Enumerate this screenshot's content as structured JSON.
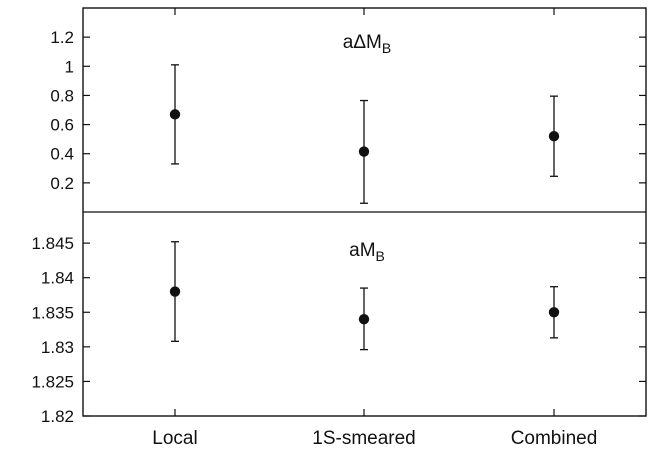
{
  "chart_data": [
    {
      "type": "scatter",
      "title": "aΔM",
      "title_subscript": "B",
      "categories": [
        "Local",
        "1S-smeared",
        "Combined"
      ],
      "values": [
        0.67,
        0.415,
        0.52
      ],
      "error_low": [
        0.33,
        0.06,
        0.245
      ],
      "error_high": [
        1.01,
        0.765,
        0.795
      ],
      "ylim": [
        0.0,
        1.4
      ],
      "yticks": [
        0.2,
        0.4,
        0.6,
        0.8,
        1.0,
        1.2
      ],
      "ytick_labels": [
        "0.2",
        "0.4",
        "0.6",
        "0.8",
        "1",
        "1.2"
      ],
      "grid": false,
      "error_bars": true
    },
    {
      "type": "scatter",
      "title": "aM",
      "title_subscript": "B",
      "categories": [
        "Local",
        "1S-smeared",
        "Combined"
      ],
      "values": [
        1.838,
        1.834,
        1.835
      ],
      "error_low": [
        1.8308,
        1.8296,
        1.8313
      ],
      "error_high": [
        1.8452,
        1.8385,
        1.8387
      ],
      "ylim": [
        1.82,
        1.8495
      ],
      "yticks": [
        1.82,
        1.825,
        1.83,
        1.835,
        1.84,
        1.845
      ],
      "ytick_labels": [
        "1.82",
        "1.825",
        "1.83",
        "1.835",
        "1.84",
        "1.845"
      ],
      "grid": false,
      "error_bars": true
    }
  ],
  "x_axis": {
    "tick_labels": [
      "Local",
      "1S-smeared",
      "Combined"
    ]
  }
}
